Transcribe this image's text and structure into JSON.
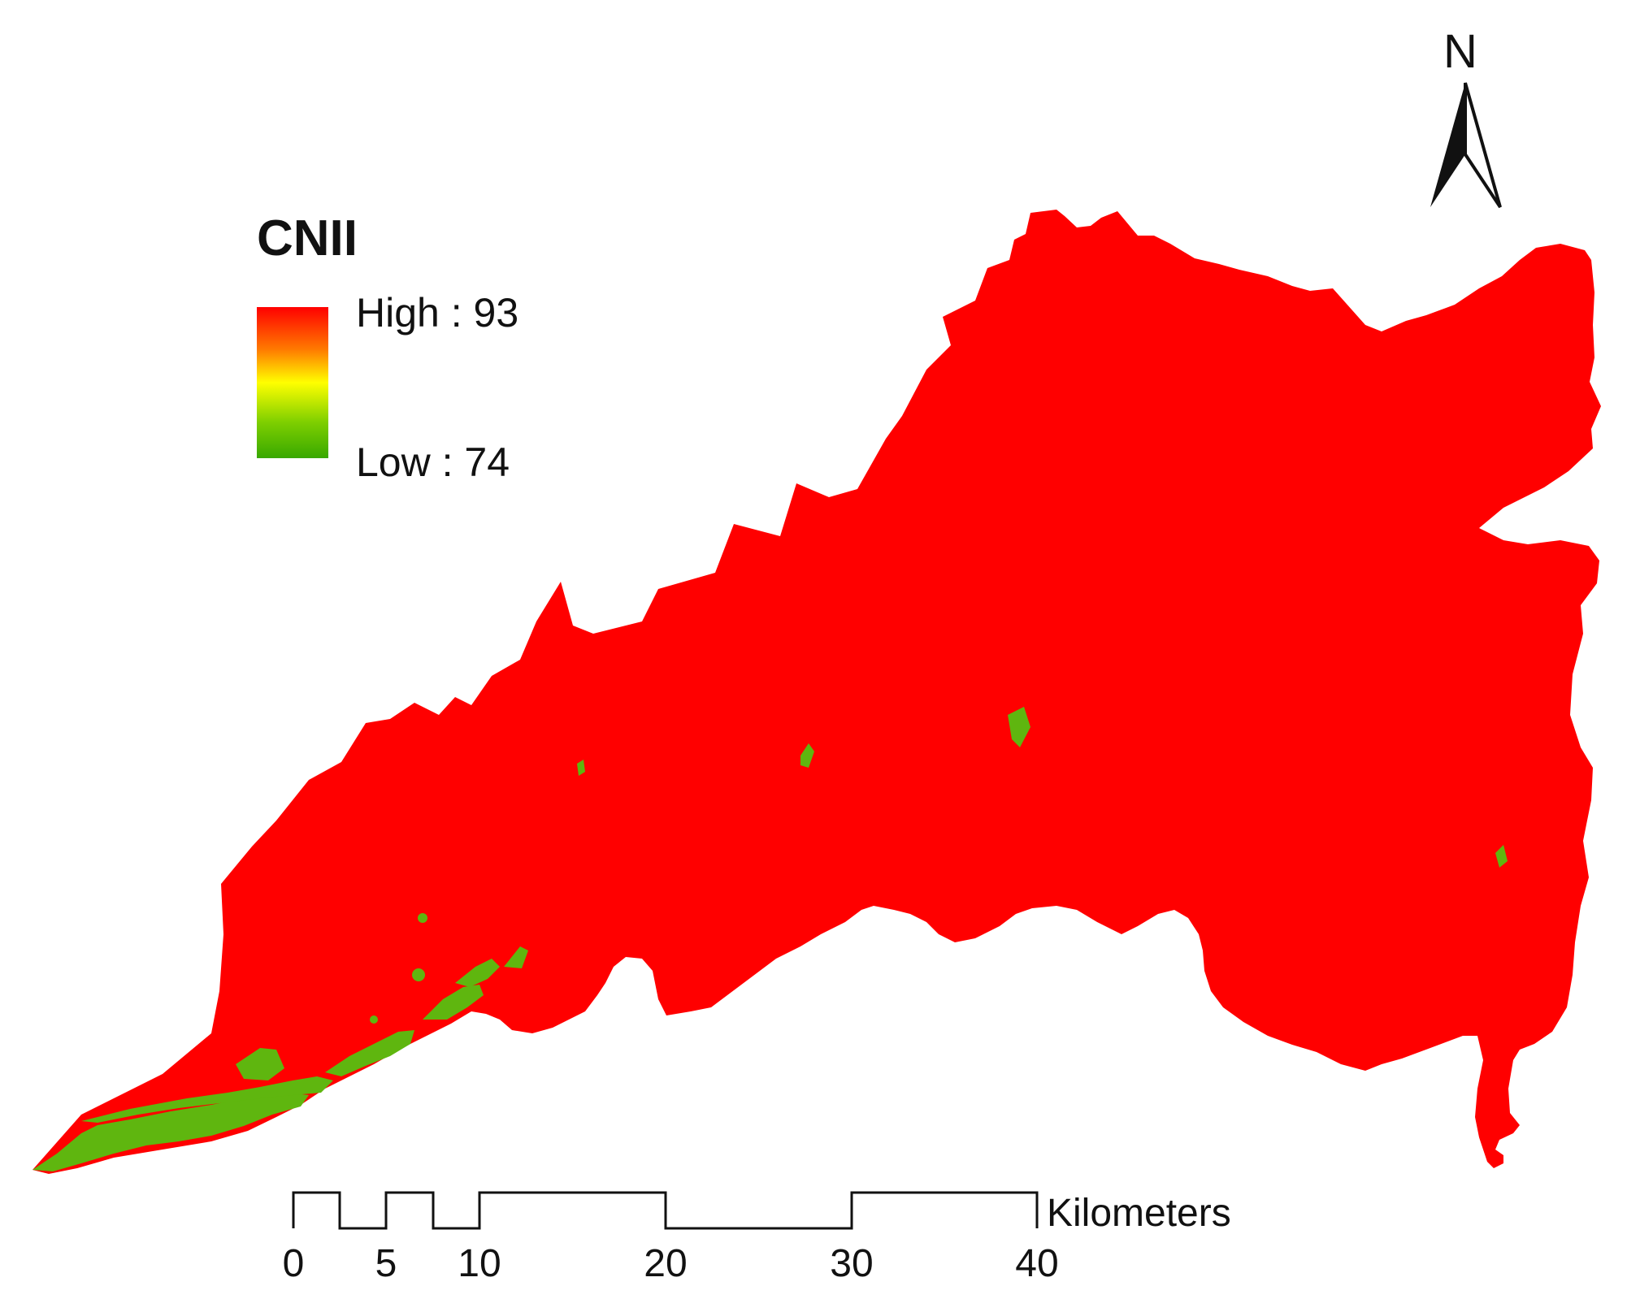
{
  "legend": {
    "title": "CNII",
    "high_label": "High : 93",
    "low_label": "Low : 74",
    "high_color": "#ff0000",
    "mid_color": "#ffff00",
    "low_color": "#38a800"
  },
  "north_arrow": {
    "label": "N"
  },
  "scale_bar": {
    "unit": "Kilometers",
    "ticks": [
      "0",
      "5",
      "10",
      "20",
      "30",
      "40"
    ]
  },
  "map": {
    "watershed_color": "#ff0000",
    "low_cn_color": "#5fb60f"
  }
}
